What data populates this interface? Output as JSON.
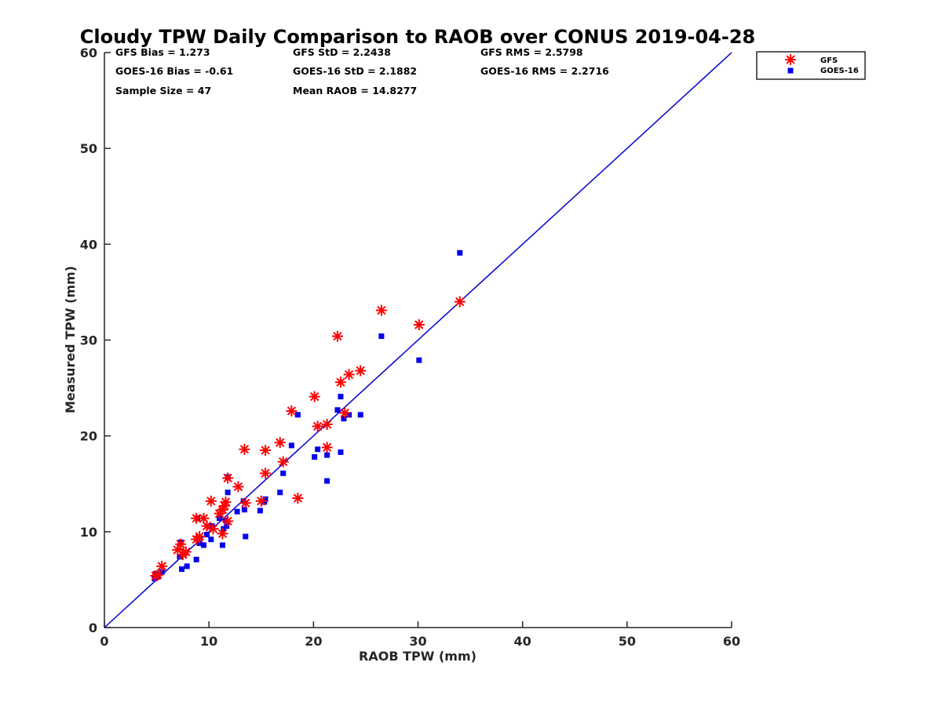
{
  "chart_data": {
    "type": "scatter",
    "title": "Cloudy TPW Daily Comparison to RAOB over CONUS 2019-04-28",
    "xlabel": "RAOB TPW (mm)",
    "ylabel": "Measured TPW (mm)",
    "xlim": [
      0,
      60
    ],
    "ylim": [
      0,
      60
    ],
    "xticks": [
      "0",
      "10",
      "20",
      "30",
      "40",
      "50",
      "60"
    ],
    "yticks": [
      "0",
      "10",
      "20",
      "30",
      "40",
      "50",
      "60"
    ],
    "grid": false,
    "legend_position": "top-right outside",
    "reference_line": {
      "label": "1:1",
      "color": "#0000cc"
    },
    "stats": [
      [
        "GFS Bias = 1.273",
        "GFS StD = 2.2438",
        "GFS RMS = 2.5798"
      ],
      [
        "GOES-16 Bias = -0.61",
        "GOES-16 StD = 2.1882",
        "GOES-16 RMS = 2.2716"
      ],
      [
        "Sample Size = 47",
        "Mean RAOB = 14.8277",
        ""
      ]
    ],
    "series": [
      {
        "name": "GFS",
        "marker": "asterisk",
        "color": "#ff0000",
        "points": [
          [
            4.9,
            5.4
          ],
          [
            5.1,
            5.5
          ],
          [
            5.5,
            6.4
          ],
          [
            7.0,
            8.1
          ],
          [
            7.3,
            8.7
          ],
          [
            7.5,
            7.6
          ],
          [
            7.8,
            7.9
          ],
          [
            8.8,
            9.2
          ],
          [
            8.8,
            11.4
          ],
          [
            9.1,
            9.5
          ],
          [
            9.5,
            11.4
          ],
          [
            9.8,
            10.6
          ],
          [
            10.2,
            13.2
          ],
          [
            10.4,
            10.3
          ],
          [
            11.0,
            11.9
          ],
          [
            11.3,
            9.8
          ],
          [
            11.3,
            12.3
          ],
          [
            11.5,
            12.7
          ],
          [
            11.6,
            13.1
          ],
          [
            11.8,
            15.6
          ],
          [
            11.8,
            11.1
          ],
          [
            12.8,
            14.7
          ],
          [
            13.4,
            18.6
          ],
          [
            13.5,
            13.0
          ],
          [
            15.0,
            13.2
          ],
          [
            15.4,
            16.1
          ],
          [
            15.4,
            18.5
          ],
          [
            16.8,
            19.3
          ],
          [
            17.1,
            17.3
          ],
          [
            17.9,
            22.6
          ],
          [
            18.5,
            13.5
          ],
          [
            20.1,
            24.1
          ],
          [
            20.4,
            21.0
          ],
          [
            21.3,
            21.2
          ],
          [
            21.3,
            18.8
          ],
          [
            22.3,
            30.4
          ],
          [
            22.6,
            25.6
          ],
          [
            23.0,
            22.4
          ],
          [
            23.4,
            26.4
          ],
          [
            24.5,
            26.8
          ],
          [
            26.5,
            33.1
          ],
          [
            30.1,
            31.6
          ],
          [
            34.0,
            34.0
          ]
        ]
      },
      {
        "name": "GOES-16",
        "marker": "square",
        "color": "#0000ee",
        "points": [
          [
            4.8,
            5.1
          ],
          [
            4.9,
            5.6
          ],
          [
            5.1,
            5.3
          ],
          [
            5.5,
            5.8
          ],
          [
            7.2,
            7.4
          ],
          [
            7.3,
            8.9
          ],
          [
            7.4,
            6.1
          ],
          [
            7.9,
            6.4
          ],
          [
            8.8,
            7.1
          ],
          [
            8.9,
            11.4
          ],
          [
            9.1,
            8.8
          ],
          [
            9.5,
            8.6
          ],
          [
            9.8,
            9.7
          ],
          [
            10.2,
            9.2
          ],
          [
            10.3,
            10.6
          ],
          [
            11.0,
            11.4
          ],
          [
            11.3,
            8.6
          ],
          [
            11.4,
            10.3
          ],
          [
            11.6,
            11.2
          ],
          [
            11.7,
            10.6
          ],
          [
            11.8,
            14.1
          ],
          [
            11.8,
            15.7
          ],
          [
            12.7,
            12.1
          ],
          [
            13.3,
            13.2
          ],
          [
            13.4,
            12.3
          ],
          [
            13.5,
            9.5
          ],
          [
            14.9,
            12.2
          ],
          [
            15.3,
            13.1
          ],
          [
            15.4,
            13.4
          ],
          [
            16.8,
            14.1
          ],
          [
            17.1,
            16.1
          ],
          [
            17.9,
            19.0
          ],
          [
            18.5,
            22.2
          ],
          [
            20.1,
            17.8
          ],
          [
            20.4,
            18.6
          ],
          [
            21.3,
            15.3
          ],
          [
            21.3,
            18.0
          ],
          [
            22.3,
            22.7
          ],
          [
            22.6,
            24.1
          ],
          [
            22.6,
            18.3
          ],
          [
            22.9,
            21.8
          ],
          [
            23.4,
            22.2
          ],
          [
            24.5,
            22.2
          ],
          [
            26.5,
            30.4
          ],
          [
            30.1,
            27.9
          ],
          [
            34.0,
            39.1
          ]
        ]
      }
    ]
  }
}
